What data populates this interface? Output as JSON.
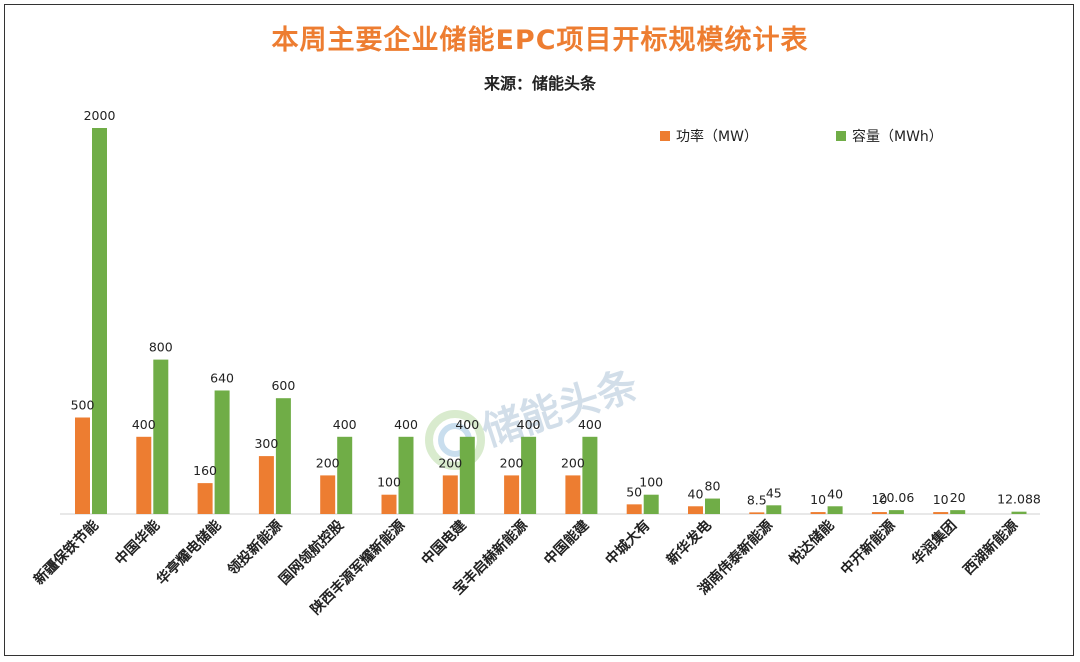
{
  "title": "本周主要企业储能EPC项目开标规模统计表",
  "subtitle": "来源：储能头条",
  "watermark": "储能头条",
  "chart_data": {
    "type": "bar",
    "categories": [
      "新疆保铁节能",
      "中国华能",
      "华亭耀电储能",
      "领投新能源",
      "国网领航控股",
      "陕西丰源军耀新能源",
      "中国电建",
      "宝丰启赫新能源",
      "中国能建",
      "中城大有",
      "新华发电",
      "湖南伟泰新能源",
      "悦达储能",
      "中开新能源",
      "华润集团",
      "西湖新能源"
    ],
    "series": [
      {
        "name": "功率（MW）",
        "color": "#ED7D31",
        "values": [
          500,
          400,
          160,
          300,
          200,
          100,
          200,
          200,
          200,
          50,
          40,
          8.5,
          10,
          10,
          10,
          ""
        ],
        "labels": [
          "500",
          "400",
          "160",
          "300",
          "200",
          "100",
          "200",
          "200",
          "200",
          "50",
          "40",
          "8.5",
          "10",
          "10",
          "10",
          ""
        ]
      },
      {
        "name": "容量（MWh）",
        "color": "#70AD47",
        "values": [
          2000,
          800,
          640,
          600,
          400,
          400,
          400,
          400,
          400,
          100,
          80,
          45,
          40,
          20.06,
          20,
          12.088
        ],
        "labels": [
          "2000",
          "800",
          "640",
          "600",
          "400",
          "400",
          "400",
          "400",
          "400",
          "100",
          "80",
          "45",
          "40",
          "20.06",
          "20",
          "12.088"
        ]
      }
    ],
    "ylim": [
      0,
      2000
    ],
    "grid": false,
    "legend_position": "top-right"
  }
}
